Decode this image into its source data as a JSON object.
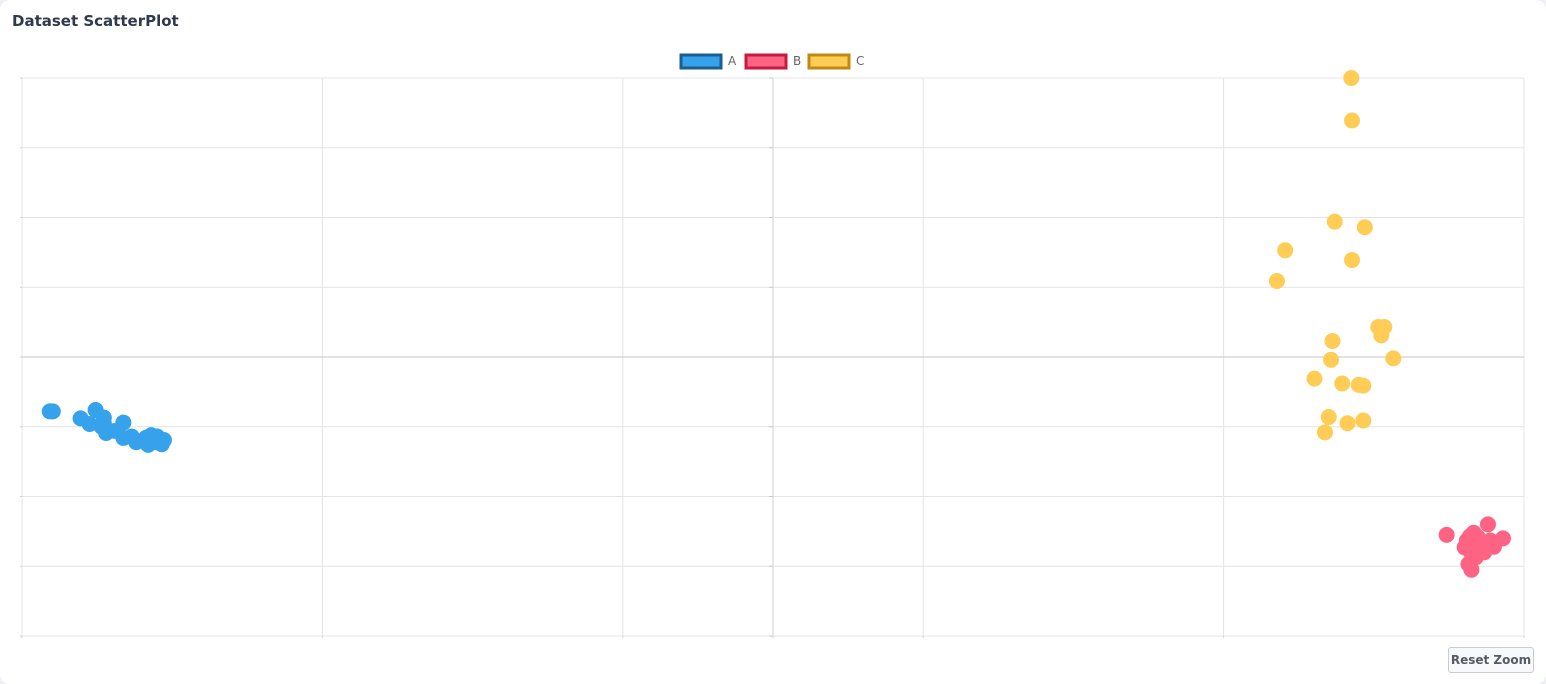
{
  "card": {
    "title": "Dataset ScatterPlot"
  },
  "controls": {
    "reset_zoom_label": "Reset Zoom"
  },
  "chart_data": {
    "type": "scatter",
    "title": "",
    "xlabel": "",
    "ylabel": "",
    "xlim": [
      -10,
      10
    ],
    "ylim": [
      -4,
      4
    ],
    "grid": true,
    "legend_position": "top-center",
    "series": [
      {
        "name": "A",
        "color": "#36a2eb",
        "border": "#1a5f8f",
        "points": [
          [
            -9.63,
            -0.78
          ],
          [
            -9.59,
            -0.78
          ],
          [
            -9.22,
            -0.88
          ],
          [
            -9.1,
            -0.96
          ],
          [
            -9.02,
            -0.76
          ],
          [
            -8.91,
            -0.95
          ],
          [
            -8.88,
            -1.09
          ],
          [
            -8.94,
            -1.0
          ],
          [
            -8.91,
            -0.87
          ],
          [
            -8.76,
            -1.06
          ],
          [
            -8.65,
            -0.94
          ],
          [
            -8.65,
            -1.16
          ],
          [
            -8.48,
            -1.22
          ],
          [
            -8.54,
            -1.14
          ],
          [
            -8.28,
            -1.12
          ],
          [
            -8.35,
            -1.16
          ],
          [
            -8.32,
            -1.26
          ],
          [
            -8.2,
            -1.14
          ],
          [
            -8.14,
            -1.25
          ],
          [
            -8.11,
            -1.19
          ],
          [
            -8.23,
            -1.22
          ]
        ]
      },
      {
        "name": "B",
        "color": "#ff6384",
        "border": "#c8193f",
        "points": [
          [
            8.97,
            -2.55
          ],
          [
            9.21,
            -2.73
          ],
          [
            9.24,
            -2.63
          ],
          [
            9.28,
            -2.57
          ],
          [
            9.33,
            -2.52
          ],
          [
            9.38,
            -2.58
          ],
          [
            9.42,
            -2.7
          ],
          [
            9.3,
            -2.81
          ],
          [
            9.36,
            -2.87
          ],
          [
            9.47,
            -2.8
          ],
          [
            9.52,
            -2.4
          ],
          [
            9.55,
            -2.63
          ],
          [
            9.6,
            -2.72
          ],
          [
            9.72,
            -2.6
          ],
          [
            9.3,
            -2.92
          ],
          [
            9.26,
            -2.97
          ],
          [
            9.3,
            -3.05
          ],
          [
            9.34,
            -2.64
          ]
        ]
      },
      {
        "name": "C",
        "color": "#ffcd56",
        "border": "#c08a10",
        "points": [
          [
            7.7,
            4.0
          ],
          [
            7.71,
            3.39
          ],
          [
            7.48,
            1.94
          ],
          [
            7.88,
            1.86
          ],
          [
            6.82,
            1.53
          ],
          [
            7.71,
            1.39
          ],
          [
            6.71,
            1.09
          ],
          [
            8.06,
            0.43
          ],
          [
            8.14,
            0.43
          ],
          [
            8.1,
            0.31
          ],
          [
            7.45,
            0.23
          ],
          [
            8.26,
            -0.02
          ],
          [
            7.43,
            -0.04
          ],
          [
            7.21,
            -0.31
          ],
          [
            7.58,
            -0.38
          ],
          [
            7.8,
            -0.4
          ],
          [
            7.86,
            -0.41
          ],
          [
            7.4,
            -0.86
          ],
          [
            7.86,
            -0.91
          ],
          [
            7.65,
            -0.95
          ],
          [
            7.35,
            -1.08
          ]
        ]
      }
    ]
  }
}
